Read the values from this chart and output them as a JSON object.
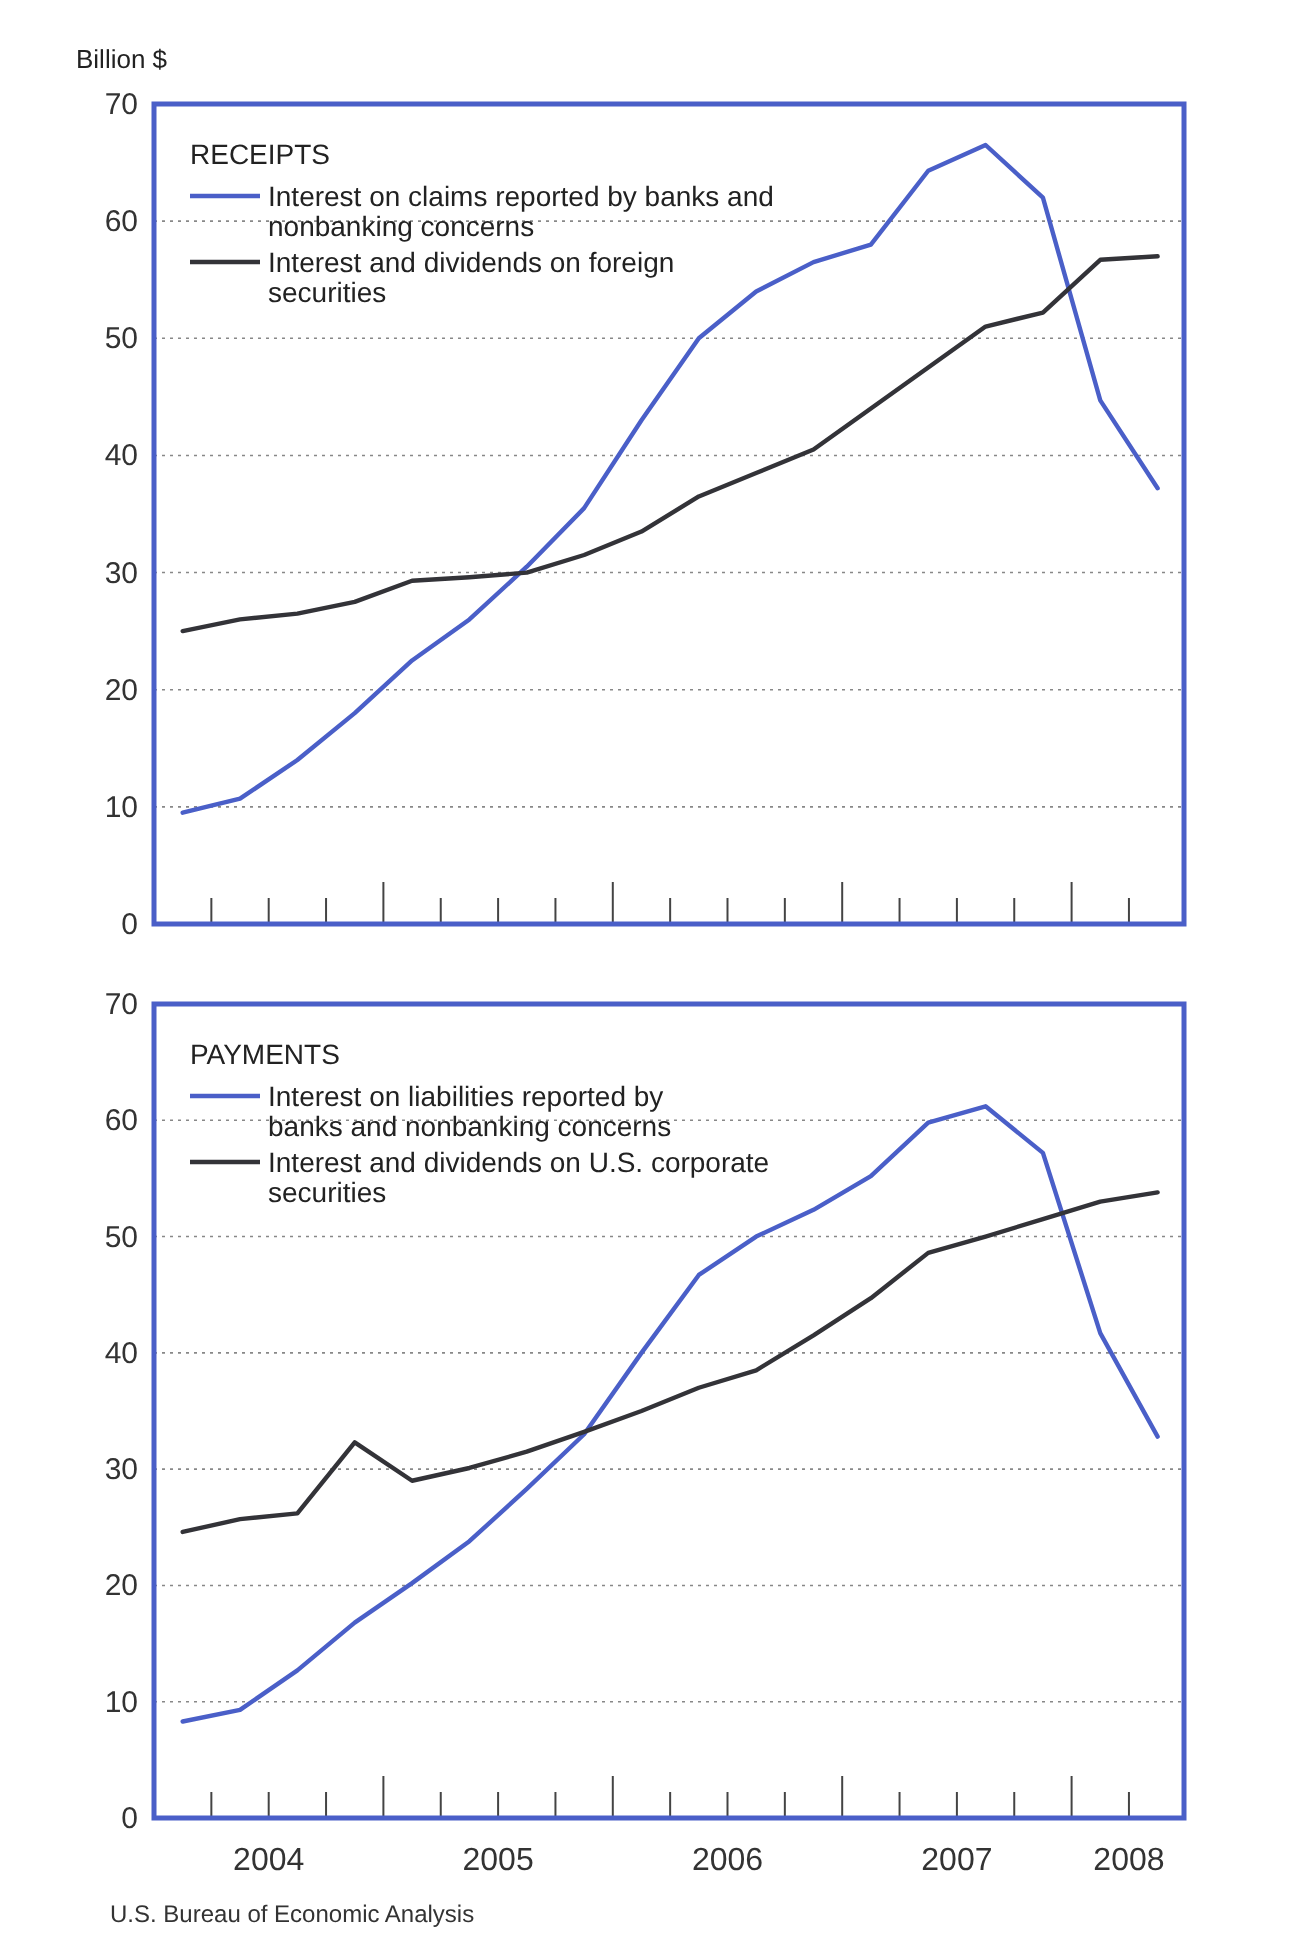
{
  "chart_data": [
    {
      "type": "line",
      "ylabel": "Billion $",
      "legend_title": "RECEIPTS",
      "legend": "top left",
      "grid": "y",
      "line_style": "solid",
      "marker": "none",
      "tick_labels": "y",
      "x": [
        2004.125,
        2004.375,
        2004.625,
        2004.875,
        2005.125,
        2005.375,
        2005.625,
        2005.875,
        2006.125,
        2006.375,
        2006.625,
        2006.875,
        2007.125,
        2007.375,
        2007.625,
        2007.875,
        2008.125,
        2008.375
      ],
      "xlim": [
        2004,
        2008.49
      ],
      "xticks": [
        {
          "value": 2004.25,
          "label": null
        },
        {
          "value": 2004.5,
          "label": null
        },
        {
          "value": 2004.75,
          "label": null
        },
        {
          "value": 2005,
          "label": null
        },
        {
          "value": 2005.25,
          "label": null
        },
        {
          "value": 2005.5,
          "label": null
        },
        {
          "value": 2005.75,
          "label": null
        },
        {
          "value": 2006,
          "label": null
        },
        {
          "value": 2006.25,
          "label": null
        },
        {
          "value": 2006.5,
          "label": null
        },
        {
          "value": 2006.75,
          "label": null
        },
        {
          "value": 2007,
          "label": null
        },
        {
          "value": 2007.25,
          "label": null
        },
        {
          "value": 2007.5,
          "label": null
        },
        {
          "value": 2007.75,
          "label": null
        },
        {
          "value": 2008,
          "label": null
        },
        {
          "value": 2008.25,
          "label": null
        }
      ],
      "ylim": [
        0,
        70
      ],
      "yticks": [
        0,
        10,
        20,
        30,
        40,
        50,
        60,
        70
      ],
      "series": [
        {
          "name": "Interest on claims reported by banks and nonbanking concerns",
          "color": "#4a5fc8",
          "values": [
            9.5,
            10.7,
            14,
            18,
            22.5,
            26,
            30.5,
            35.5,
            43,
            50,
            54,
            56.5,
            58,
            64.3,
            66.5,
            62,
            44.7,
            37.2
          ]
        },
        {
          "name": "Interest and dividends on foreign securities",
          "color": "#333338",
          "values": [
            25,
            26,
            26.5,
            27.5,
            29.3,
            29.6,
            30,
            31.5,
            33.5,
            36.5,
            38.5,
            40.5,
            44,
            47.5,
            51,
            52.2,
            56.7,
            57
          ]
        }
      ]
    },
    {
      "type": "line",
      "legend_title": "PAYMENTS",
      "legend": "top left",
      "grid": "y",
      "line_style": "solid",
      "marker": "none",
      "x": [
        2004.125,
        2004.375,
        2004.625,
        2004.875,
        2005.125,
        2005.375,
        2005.625,
        2005.875,
        2006.125,
        2006.375,
        2006.625,
        2006.875,
        2007.125,
        2007.375,
        2007.625,
        2007.875,
        2008.125,
        2008.375
      ],
      "xlim": [
        2004,
        2008.49
      ],
      "xticks": [
        {
          "value": 2004.25,
          "label": null
        },
        {
          "value": 2004.5,
          "label": "2004"
        },
        {
          "value": 2004.75,
          "label": null
        },
        {
          "value": 2005,
          "label": null
        },
        {
          "value": 2005.25,
          "label": null
        },
        {
          "value": 2005.5,
          "label": "2005"
        },
        {
          "value": 2005.75,
          "label": null
        },
        {
          "value": 2006,
          "label": null
        },
        {
          "value": 2006.25,
          "label": null
        },
        {
          "value": 2006.5,
          "label": "2006"
        },
        {
          "value": 2006.75,
          "label": null
        },
        {
          "value": 2007,
          "label": null
        },
        {
          "value": 2007.25,
          "label": null
        },
        {
          "value": 2007.5,
          "label": "2007"
        },
        {
          "value": 2007.75,
          "label": null
        },
        {
          "value": 2008,
          "label": null
        },
        {
          "value": 2008.25,
          "label": "2008"
        }
      ],
      "ylim": [
        0,
        70
      ],
      "yticks": [
        0,
        10,
        20,
        30,
        40,
        50,
        60,
        70
      ],
      "annotations": [
        "U.S. Bureau of Economic Analysis"
      ],
      "series": [
        {
          "name": "Interest on liabilities reported by banks and nonbanking concerns",
          "color": "#4a5fc8",
          "values": [
            8.3,
            9.3,
            12.7,
            16.8,
            20.2,
            23.8,
            28.3,
            33,
            40,
            46.7,
            50,
            52.3,
            55.2,
            59.8,
            61.2,
            57.2,
            41.7,
            32.8
          ]
        },
        {
          "name": "Interest and dividends on U.S. corporate securities",
          "color": "#333338",
          "values": [
            24.6,
            25.7,
            26.2,
            32.3,
            29,
            30.1,
            31.5,
            33.2,
            35,
            37,
            38.5,
            41.5,
            44.7,
            48.6,
            50,
            51.5,
            53,
            53.8
          ]
        }
      ]
    }
  ]
}
